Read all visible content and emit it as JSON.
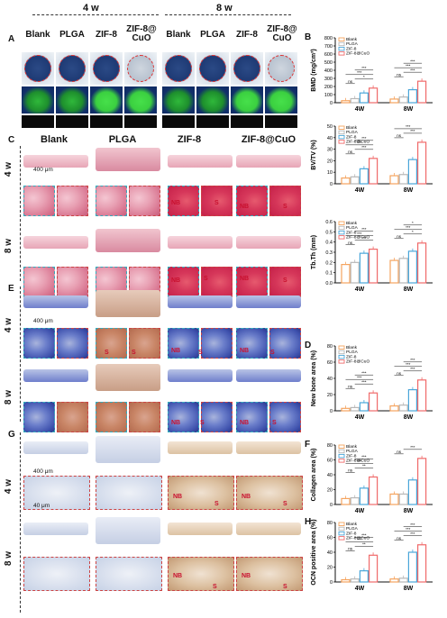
{
  "timepoints": [
    "4 w",
    "8 w"
  ],
  "groups_top": [
    "Blank",
    "PLGA",
    "ZIF-8",
    "ZIF-8@ CuO",
    "Blank",
    "PLGA",
    "ZIF-8",
    "ZIF-8@ CuO"
  ],
  "groups_hist": [
    "Blank",
    "PLGA",
    "ZIF-8",
    "ZIF-8@CuO"
  ],
  "row_times": [
    "4 w",
    "8 w",
    "4 w",
    "8 w",
    "4 w",
    "8 w"
  ],
  "panels": {
    "A": "A",
    "B": "B",
    "C": "C",
    "D": "D",
    "E": "E",
    "F": "F",
    "G": "G",
    "H": "H"
  },
  "scale": {
    "s400": "400 μm",
    "s40": "40 μm"
  },
  "tags": {
    "NB": "NB",
    "S": "S"
  },
  "charts_text": {
    "legend": [
      "Blank",
      "PLGA",
      "ZIF-8",
      "ZIF-8@CuO"
    ],
    "x": [
      "4W",
      "8W"
    ]
  },
  "colors": {
    "Blank": "#f5a45f",
    "PLGA": "#b7b7b7",
    "ZIF-8": "#4aa6d9",
    "ZIF-8@CuO": "#f06a6a"
  },
  "chart_data": [
    {
      "type": "bar",
      "ylabel": "BMD (mg/cm³)",
      "ylim": [
        0,
        800
      ],
      "yticks": [
        0,
        100,
        200,
        300,
        400,
        500,
        600,
        700,
        800
      ],
      "categories": [
        "4W",
        "8W"
      ],
      "series": [
        {
          "name": "Blank",
          "values": [
            25,
            45
          ]
        },
        {
          "name": "PLGA",
          "values": [
            50,
            70
          ]
        },
        {
          "name": "ZIF-8",
          "values": [
            120,
            160
          ]
        },
        {
          "name": "ZIF-8@CuO",
          "values": [
            180,
            265
          ]
        }
      ],
      "sig": [
        "ns",
        "*",
        "***",
        "***",
        "**",
        "***",
        "ns",
        "***",
        "***",
        "***",
        "***",
        "***"
      ]
    },
    {
      "type": "bar",
      "ylabel": "BV/TV (%)",
      "ylim": [
        0,
        50
      ],
      "yticks": [
        0,
        10,
        20,
        30,
        40,
        50
      ],
      "categories": [
        "4W",
        "8W"
      ],
      "series": [
        {
          "name": "Blank",
          "values": [
            5,
            7
          ]
        },
        {
          "name": "PLGA",
          "values": [
            6,
            8
          ]
        },
        {
          "name": "ZIF-8",
          "values": [
            13,
            21
          ]
        },
        {
          "name": "ZIF-8@CuO",
          "values": [
            22,
            36
          ]
        }
      ],
      "sig": [
        "ns",
        "***",
        "***",
        "***",
        "ns",
        "***",
        "***",
        "***"
      ]
    },
    {
      "type": "bar",
      "ylabel": "Tb.Th (mm)",
      "ylim": [
        0,
        0.6
      ],
      "yticks": [
        0,
        0.1,
        0.2,
        0.3,
        0.4,
        0.5,
        0.6
      ],
      "categories": [
        "4W",
        "8W"
      ],
      "series": [
        {
          "name": "Blank",
          "values": [
            0.18,
            0.22
          ]
        },
        {
          "name": "PLGA",
          "values": [
            0.2,
            0.24
          ]
        },
        {
          "name": "ZIF-8",
          "values": [
            0.29,
            0.31
          ]
        },
        {
          "name": "ZIF-8@CuO",
          "values": [
            0.33,
            0.39
          ]
        }
      ],
      "sig": [
        "ns",
        "***",
        "***",
        "***",
        "ns",
        "*",
        "***",
        "*"
      ]
    },
    {
      "type": "bar",
      "ylabel": "New bone area (%)",
      "ylim": [
        0,
        80
      ],
      "yticks": [
        0,
        20,
        40,
        60,
        80
      ],
      "categories": [
        "4W",
        "8W"
      ],
      "series": [
        {
          "name": "Blank",
          "values": [
            3,
            6
          ]
        },
        {
          "name": "PLGA",
          "values": [
            4,
            7
          ]
        },
        {
          "name": "ZIF-8",
          "values": [
            10,
            26
          ]
        },
        {
          "name": "ZIF-8@CuO",
          "values": [
            22,
            38
          ]
        }
      ],
      "sig": [
        "ns",
        "***",
        "***",
        "***",
        "ns",
        "***",
        "***",
        "***"
      ]
    },
    {
      "type": "bar",
      "ylabel": "Collagen area (%)",
      "ylim": [
        0,
        80
      ],
      "yticks": [
        0,
        20,
        40,
        60,
        80
      ],
      "categories": [
        "4W",
        "8W"
      ],
      "series": [
        {
          "name": "Blank",
          "values": [
            8,
            14
          ]
        },
        {
          "name": "PLGA",
          "values": [
            9,
            14
          ]
        },
        {
          "name": "ZIF-8",
          "values": [
            22,
            33
          ]
        },
        {
          "name": "ZIF-8@CuO",
          "values": [
            37,
            62
          ]
        }
      ],
      "sig": [
        "ns",
        "**",
        "***",
        "***",
        "ns",
        "***",
        "***",
        "***"
      ]
    },
    {
      "type": "bar",
      "ylabel": "OCN positive area (%)",
      "ylim": [
        0,
        80
      ],
      "yticks": [
        0,
        20,
        40,
        60,
        80
      ],
      "categories": [
        "4W",
        "8W"
      ],
      "series": [
        {
          "name": "Blank",
          "values": [
            3,
            4
          ]
        },
        {
          "name": "PLGA",
          "values": [
            4,
            5
          ]
        },
        {
          "name": "ZIF-8",
          "values": [
            15,
            40
          ]
        },
        {
          "name": "ZIF-8@CuO",
          "values": [
            36,
            50
          ]
        }
      ],
      "sig": [
        "ns",
        "**",
        "***",
        "***",
        "ns",
        "***",
        "***",
        "***"
      ]
    }
  ]
}
